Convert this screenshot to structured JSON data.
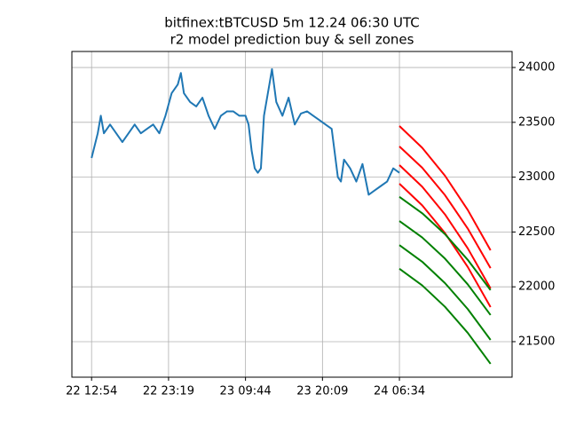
{
  "chart_data": {
    "type": "line",
    "title": "bitfinex:tBTCUSD 5m 12.24 06:30 UTC",
    "subtitle": "r2 model prediction buy & sell zones",
    "xlim": [
      -32,
      683
    ],
    "ylim": [
      21176,
      24146
    ],
    "xticks": [
      {
        "value": 0,
        "label": "22 12:54"
      },
      {
        "value": 125,
        "label": "22 23:19"
      },
      {
        "value": 250,
        "label": "23 09:44"
      },
      {
        "value": 375,
        "label": "23 20:09"
      },
      {
        "value": 500,
        "label": "24 06:34"
      }
    ],
    "yticks": [
      21500,
      22000,
      22500,
      23000,
      23500,
      24000
    ],
    "y_axis_side": "right",
    "grid": true,
    "series": [
      {
        "color": "#1f77b4",
        "x": [
          0,
          10,
          15,
          20,
          30,
          40,
          50,
          60,
          70,
          80,
          90,
          100,
          110,
          120,
          130,
          140,
          145,
          150,
          160,
          170,
          180,
          190,
          200,
          210,
          220,
          230,
          240,
          250,
          255,
          260,
          265,
          270,
          275,
          280,
          290,
          293,
          300,
          310,
          320,
          330,
          340,
          350,
          360,
          370,
          380,
          390,
          400,
          405,
          410,
          420,
          430,
          440,
          450,
          460,
          470,
          480,
          490,
          500
        ],
        "values": [
          23175,
          23400,
          23560,
          23400,
          23480,
          23400,
          23320,
          23400,
          23480,
          23400,
          23440,
          23480,
          23400,
          23560,
          23765,
          23845,
          23950,
          23765,
          23685,
          23645,
          23725,
          23560,
          23440,
          23560,
          23600,
          23600,
          23560,
          23560,
          23480,
          23240,
          23080,
          23040,
          23080,
          23560,
          23885,
          23985,
          23685,
          23560,
          23725,
          23480,
          23580,
          23600,
          23560,
          23520,
          23480,
          23440,
          23000,
          22960,
          23160,
          23080,
          22960,
          23120,
          22840,
          22880,
          22920,
          22960,
          23080,
          23040
        ]
      },
      {
        "color": "red",
        "x": [
          500,
          537,
          574,
          611,
          648
        ],
        "values": [
          23466,
          23268,
          23013,
          22701,
          22333
        ]
      },
      {
        "color": "red",
        "x": [
          500,
          537,
          574,
          611,
          648
        ],
        "values": [
          23280,
          23086,
          22836,
          22531,
          22170
        ]
      },
      {
        "color": "red",
        "x": [
          500,
          537,
          574,
          611,
          648
        ],
        "values": [
          23110,
          22913,
          22660,
          22351,
          21985
        ]
      },
      {
        "color": "red",
        "x": [
          500,
          537,
          574,
          611,
          648
        ],
        "values": [
          22940,
          22743,
          22490,
          22181,
          21815
        ]
      },
      {
        "color": "green",
        "x": [
          500,
          537,
          574,
          611,
          648
        ],
        "values": [
          22820,
          22671,
          22480,
          22246,
          21970
        ]
      },
      {
        "color": "green",
        "x": [
          500,
          537,
          574,
          611,
          648
        ],
        "values": [
          22600,
          22450,
          22257,
          22022,
          21743
        ]
      },
      {
        "color": "green",
        "x": [
          500,
          537,
          574,
          611,
          648
        ],
        "values": [
          22380,
          22229,
          22034,
          21797,
          21516
        ]
      },
      {
        "color": "green",
        "x": [
          500,
          537,
          574,
          611,
          648
        ],
        "values": [
          22165,
          22013,
          21818,
          21580,
          21298
        ]
      }
    ]
  }
}
